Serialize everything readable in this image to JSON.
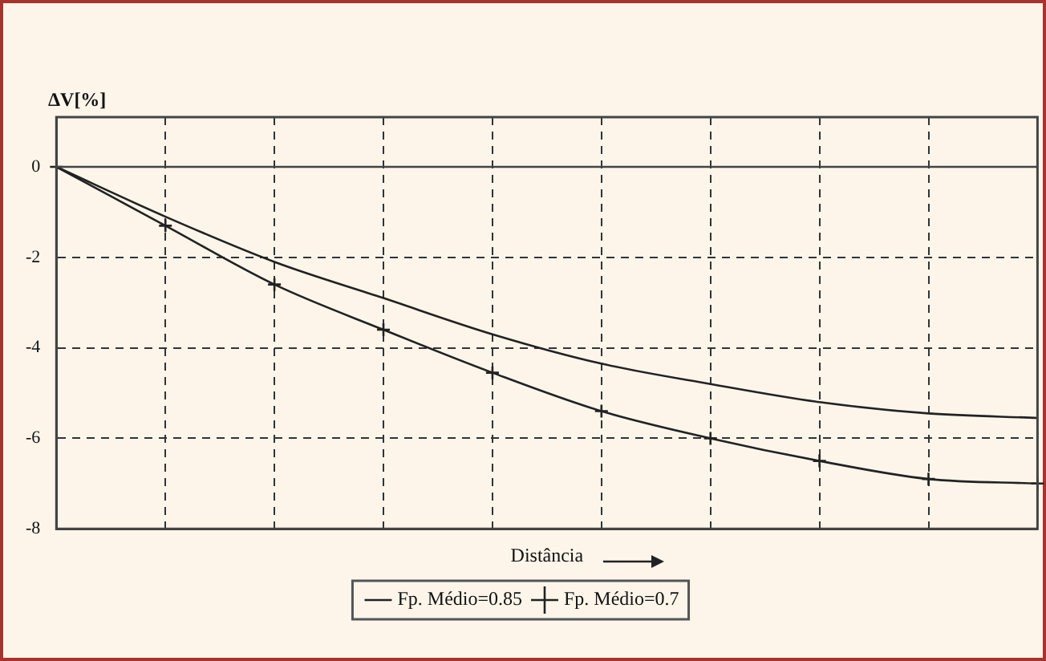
{
  "chart_data": {
    "type": "line",
    "ylabel": "ΔV[%]",
    "xlabel": "Distância",
    "categories": [
      null,
      null,
      null,
      null,
      null,
      null,
      null,
      null,
      null,
      null
    ],
    "series": [
      {
        "name": "Fp. Médio=0.85",
        "color": "#222222",
        "marker": "none",
        "values": [
          0,
          -1.1,
          -2.1,
          -2.9,
          -3.7,
          -4.35,
          -4.8,
          -5.2,
          -5.45,
          -5.55
        ]
      },
      {
        "name": "Fp. Médio=0.7",
        "color": "#222222",
        "marker": "cross",
        "values": [
          0,
          -1.3,
          -2.6,
          -3.6,
          -4.55,
          -5.4,
          -6.0,
          -6.5,
          -6.9,
          -7.0
        ]
      }
    ],
    "ylim": [
      -8,
      1.1
    ],
    "yticks": [
      -8,
      -6,
      -4,
      -2,
      0
    ],
    "tick_labels": "y",
    "grid": true,
    "legend": "bottom",
    "line_style": "solid",
    "ref_lines": [
      {
        "axis": "y",
        "value": 0,
        "color": "#444444",
        "line_style": "solid"
      }
    ]
  }
}
